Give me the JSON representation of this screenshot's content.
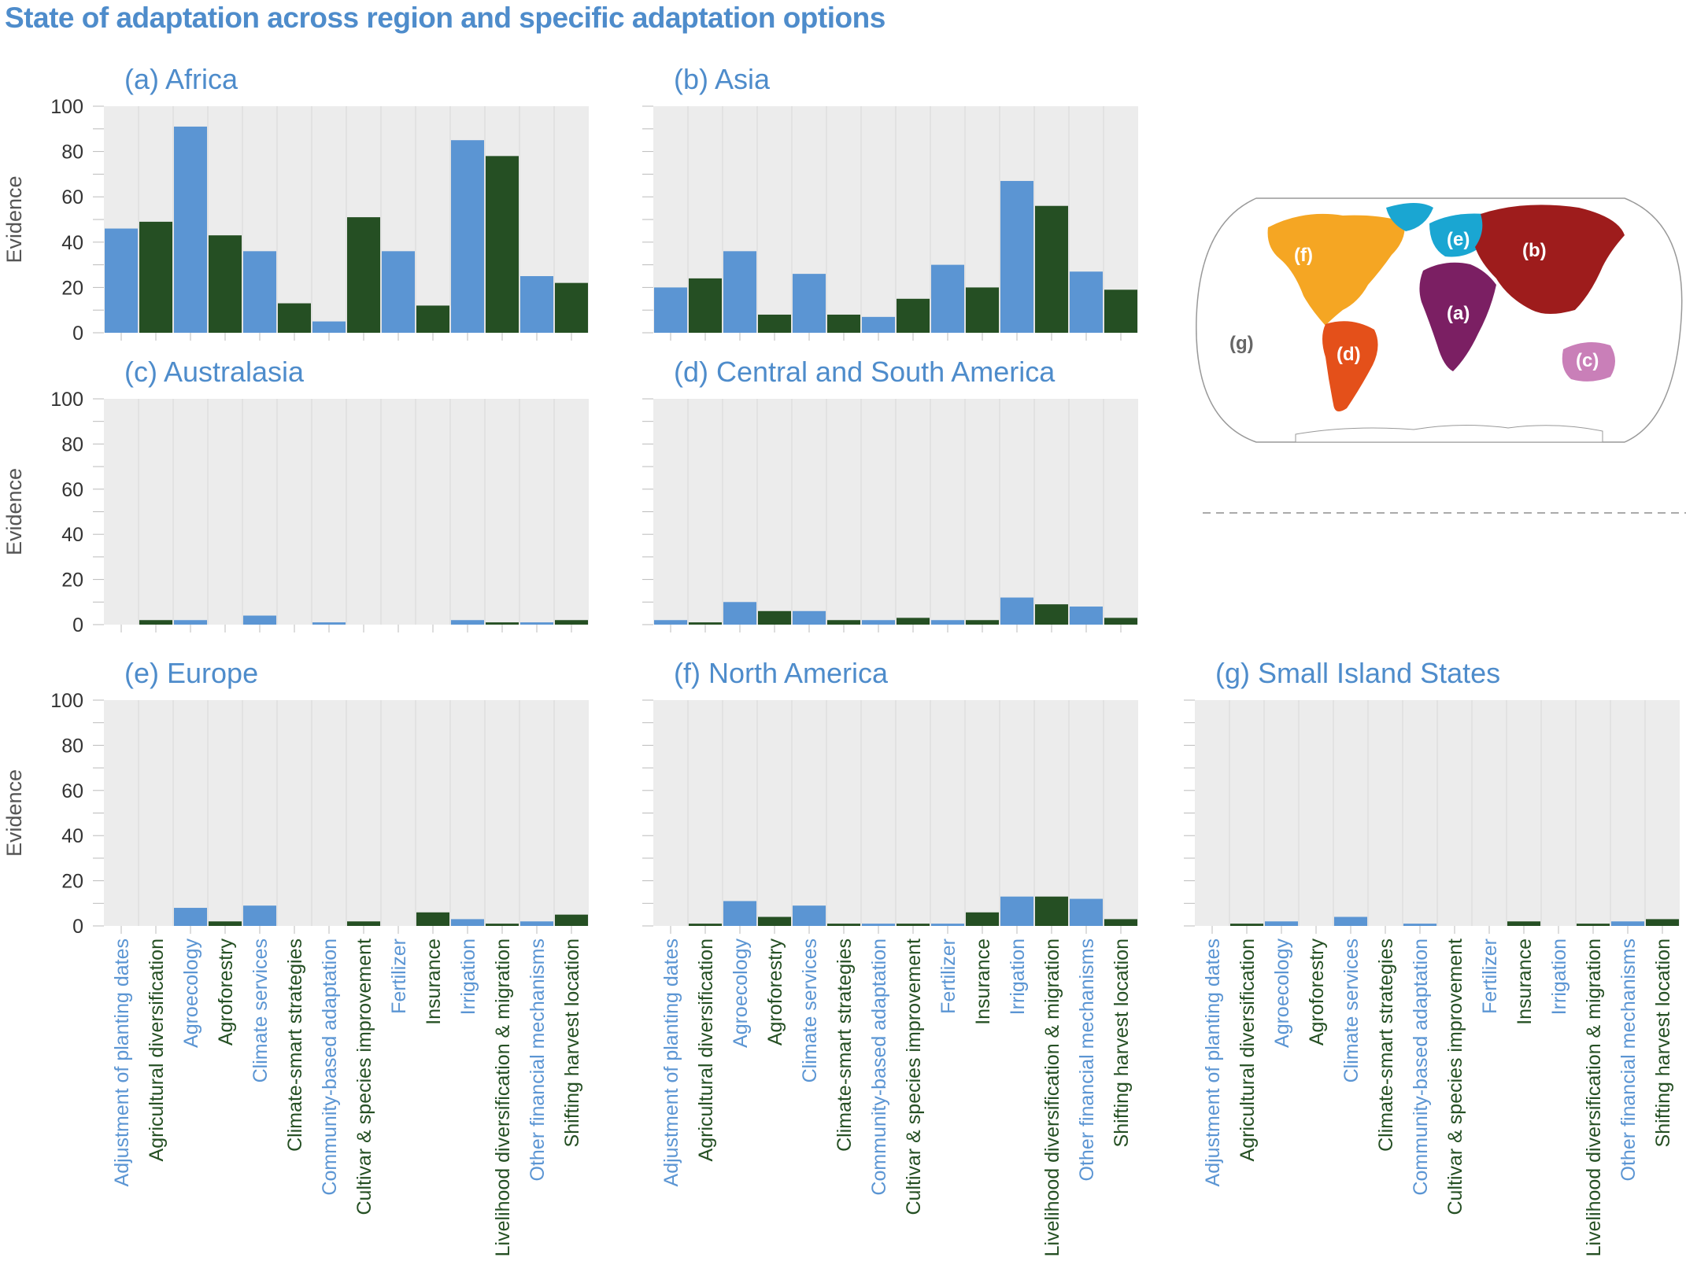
{
  "title": "State of adaptation across region and specific adaptation options",
  "colors": {
    "blue": "#5b95d3",
    "green": "#254f23",
    "title": "#4e8ccb",
    "panel_bg": "#ececec"
  },
  "chart_data": {
    "type": "bar",
    "ylabel": "Evidence",
    "ylim": [
      0,
      100
    ],
    "yticks": [
      0,
      20,
      40,
      60,
      80,
      100
    ],
    "grid": true,
    "categories": [
      "Adjustment of planting dates",
      "Agricultural diversification",
      "Agroecology",
      "Agroforestry",
      "Climate services",
      "Climate-smart strategies",
      "Community-based adaptation",
      "Cultivar & species improvement",
      "Fertilizer",
      "Insurance",
      "Irrigation",
      "Livelihood diversification & migration",
      "Other financial mechanisms",
      "Shifting harvest location"
    ],
    "category_colors": [
      "blue",
      "green",
      "blue",
      "green",
      "blue",
      "green",
      "blue",
      "green",
      "blue",
      "green",
      "blue",
      "green",
      "blue",
      "green"
    ],
    "panels": [
      {
        "title": "(a) Africa",
        "values": [
          46,
          49,
          91,
          43,
          36,
          13,
          5,
          51,
          36,
          12,
          85,
          78,
          25,
          22
        ]
      },
      {
        "title": "(b) Asia",
        "values": [
          20,
          24,
          36,
          8,
          26,
          8,
          7,
          15,
          30,
          20,
          67,
          56,
          27,
          19
        ]
      },
      {
        "title": "(c) Australasia",
        "values": [
          0,
          2,
          2,
          0,
          4,
          0,
          1,
          0,
          0,
          0,
          2,
          1,
          1,
          2
        ]
      },
      {
        "title": "(d) Central and South America",
        "values": [
          2,
          1,
          10,
          6,
          6,
          2,
          2,
          3,
          2,
          2,
          12,
          9,
          8,
          3
        ]
      },
      {
        "title": "(e) Europe",
        "values": [
          0,
          0,
          8,
          2,
          9,
          0,
          0,
          2,
          0,
          6,
          3,
          1,
          2,
          5
        ]
      },
      {
        "title": "(f) North America",
        "values": [
          0,
          1,
          11,
          4,
          9,
          1,
          1,
          1,
          1,
          6,
          13,
          13,
          12,
          3
        ]
      },
      {
        "title": "(g) Small Island States",
        "values": [
          0,
          1,
          2,
          0,
          4,
          0,
          1,
          0,
          0,
          2,
          0,
          1,
          2,
          3
        ]
      }
    ]
  },
  "map": {
    "labels": [
      "(a)",
      "(b)",
      "(c)",
      "(d)",
      "(e)",
      "(f)",
      "(g)"
    ],
    "region_colors": [
      "#7b1f63",
      "#9e1c1c",
      "#c97fb8",
      "#e4501a",
      "#1aa6d2",
      "#f5a623"
    ]
  }
}
